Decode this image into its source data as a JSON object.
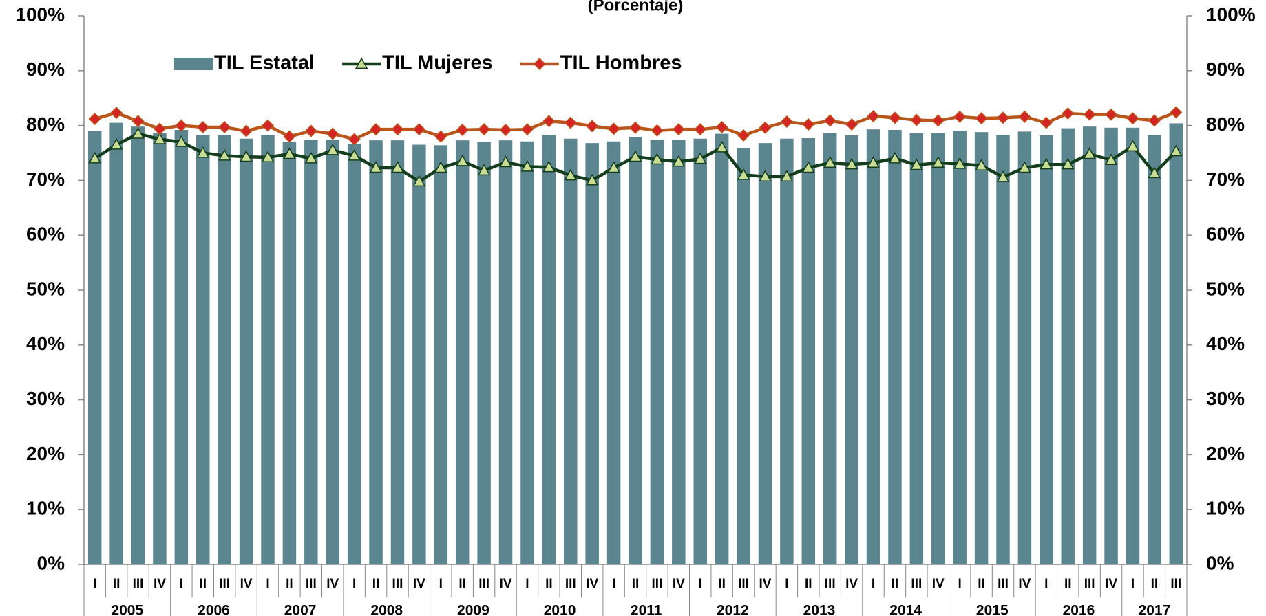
{
  "chart_data": {
    "type": "combo",
    "subtitle": "(Porcentaje)",
    "categories": [
      "I",
      "II",
      "III",
      "IV",
      "I",
      "II",
      "III",
      "IV",
      "I",
      "II",
      "III",
      "IV",
      "I",
      "II",
      "III",
      "IV",
      "I",
      "II",
      "III",
      "IV",
      "I",
      "II",
      "III",
      "IV",
      "I",
      "II",
      "III",
      "IV",
      "I",
      "II",
      "III",
      "IV",
      "I",
      "II",
      "III",
      "IV",
      "I",
      "II",
      "III",
      "IV",
      "I",
      "II",
      "III",
      "IV",
      "I",
      "II",
      "III",
      "IV",
      "I",
      "II",
      "III"
    ],
    "years": [
      "2005",
      "2006",
      "2007",
      "2008",
      "2009",
      "2010",
      "2011",
      "2012",
      "2013",
      "2014",
      "2015",
      "2016",
      "2017"
    ],
    "series": [
      {
        "name": "TIL Estatal",
        "type": "bar",
        "color": "#5b858f",
        "values": [
          79.0,
          80.5,
          79.8,
          78.6,
          79.2,
          78.3,
          78.3,
          77.6,
          78.3,
          77.0,
          77.4,
          77.4,
          76.7,
          77.3,
          77.3,
          76.5,
          76.4,
          77.3,
          77.0,
          77.3,
          77.1,
          78.3,
          77.6,
          76.8,
          77.1,
          77.9,
          77.4,
          77.4,
          77.6,
          78.5,
          75.9,
          76.8,
          77.6,
          77.7,
          78.6,
          78.2,
          79.3,
          79.2,
          78.6,
          78.6,
          79.0,
          78.8,
          78.3,
          78.9,
          78.2,
          79.5,
          79.8,
          79.6,
          79.6,
          78.3,
          80.4
        ]
      },
      {
        "name": "TIL Mujeres",
        "type": "line",
        "marker": "triangle",
        "color": "#143d1e",
        "marker_color": "#c8dc94",
        "values": [
          74.0,
          76.5,
          78.5,
          77.5,
          77.0,
          75.0,
          74.5,
          74.3,
          74.2,
          74.8,
          74.0,
          75.5,
          74.5,
          72.3,
          72.3,
          69.8,
          72.3,
          73.5,
          71.8,
          73.3,
          72.5,
          72.4,
          70.9,
          70.0,
          72.3,
          74.3,
          73.8,
          73.4,
          73.9,
          76.0,
          71.0,
          70.7,
          70.7,
          72.3,
          73.2,
          72.9,
          73.2,
          74.0,
          72.8,
          73.2,
          73.0,
          72.7,
          70.6,
          72.3,
          72.9,
          72.9,
          74.8,
          73.7,
          76.2,
          71.3,
          75.3
        ]
      },
      {
        "name": "TIL Hombres",
        "type": "line",
        "marker": "diamond",
        "color": "#b8561c",
        "marker_color": "#d42424",
        "values": [
          81.2,
          82.3,
          80.8,
          79.4,
          80.0,
          79.7,
          79.7,
          79.0,
          80.0,
          78.0,
          79.0,
          78.5,
          77.5,
          79.3,
          79.3,
          79.3,
          78.0,
          79.2,
          79.3,
          79.2,
          79.3,
          80.8,
          80.5,
          79.9,
          79.4,
          79.6,
          79.1,
          79.3,
          79.3,
          79.7,
          78.2,
          79.6,
          80.7,
          80.2,
          80.9,
          80.2,
          81.7,
          81.4,
          81.0,
          80.9,
          81.6,
          81.3,
          81.4,
          81.6,
          80.5,
          82.2,
          82.0,
          82.0,
          81.3,
          80.9,
          82.4
        ]
      }
    ],
    "ylim": [
      0,
      100
    ],
    "yticks": [
      {
        "value": 0,
        "label": "0%"
      },
      {
        "value": 10,
        "label": "10%"
      },
      {
        "value": 20,
        "label": "20%"
      },
      {
        "value": 30,
        "label": "30%"
      },
      {
        "value": 40,
        "label": "40%"
      },
      {
        "value": 50,
        "label": "50%"
      },
      {
        "value": 60,
        "label": "60%"
      },
      {
        "value": 70,
        "label": "70%"
      },
      {
        "value": 80,
        "label": "80%"
      },
      {
        "value": 90,
        "label": "90%"
      },
      {
        "value": 100,
        "label": "100%"
      }
    ],
    "y2lim": [
      0,
      100
    ],
    "y2ticks": [
      {
        "value": 0,
        "label": "0%"
      },
      {
        "value": 10,
        "label": "10%"
      },
      {
        "value": 20,
        "label": "20%"
      },
      {
        "value": 30,
        "label": "30%"
      },
      {
        "value": 40,
        "label": "40%"
      },
      {
        "value": 50,
        "label": "50%"
      },
      {
        "value": 60,
        "label": "60%"
      },
      {
        "value": 70,
        "label": "70%"
      },
      {
        "value": 80,
        "label": "80%"
      },
      {
        "value": 90,
        "label": "90%"
      },
      {
        "value": 100,
        "label": "100%"
      }
    ],
    "legend": "top-left"
  }
}
